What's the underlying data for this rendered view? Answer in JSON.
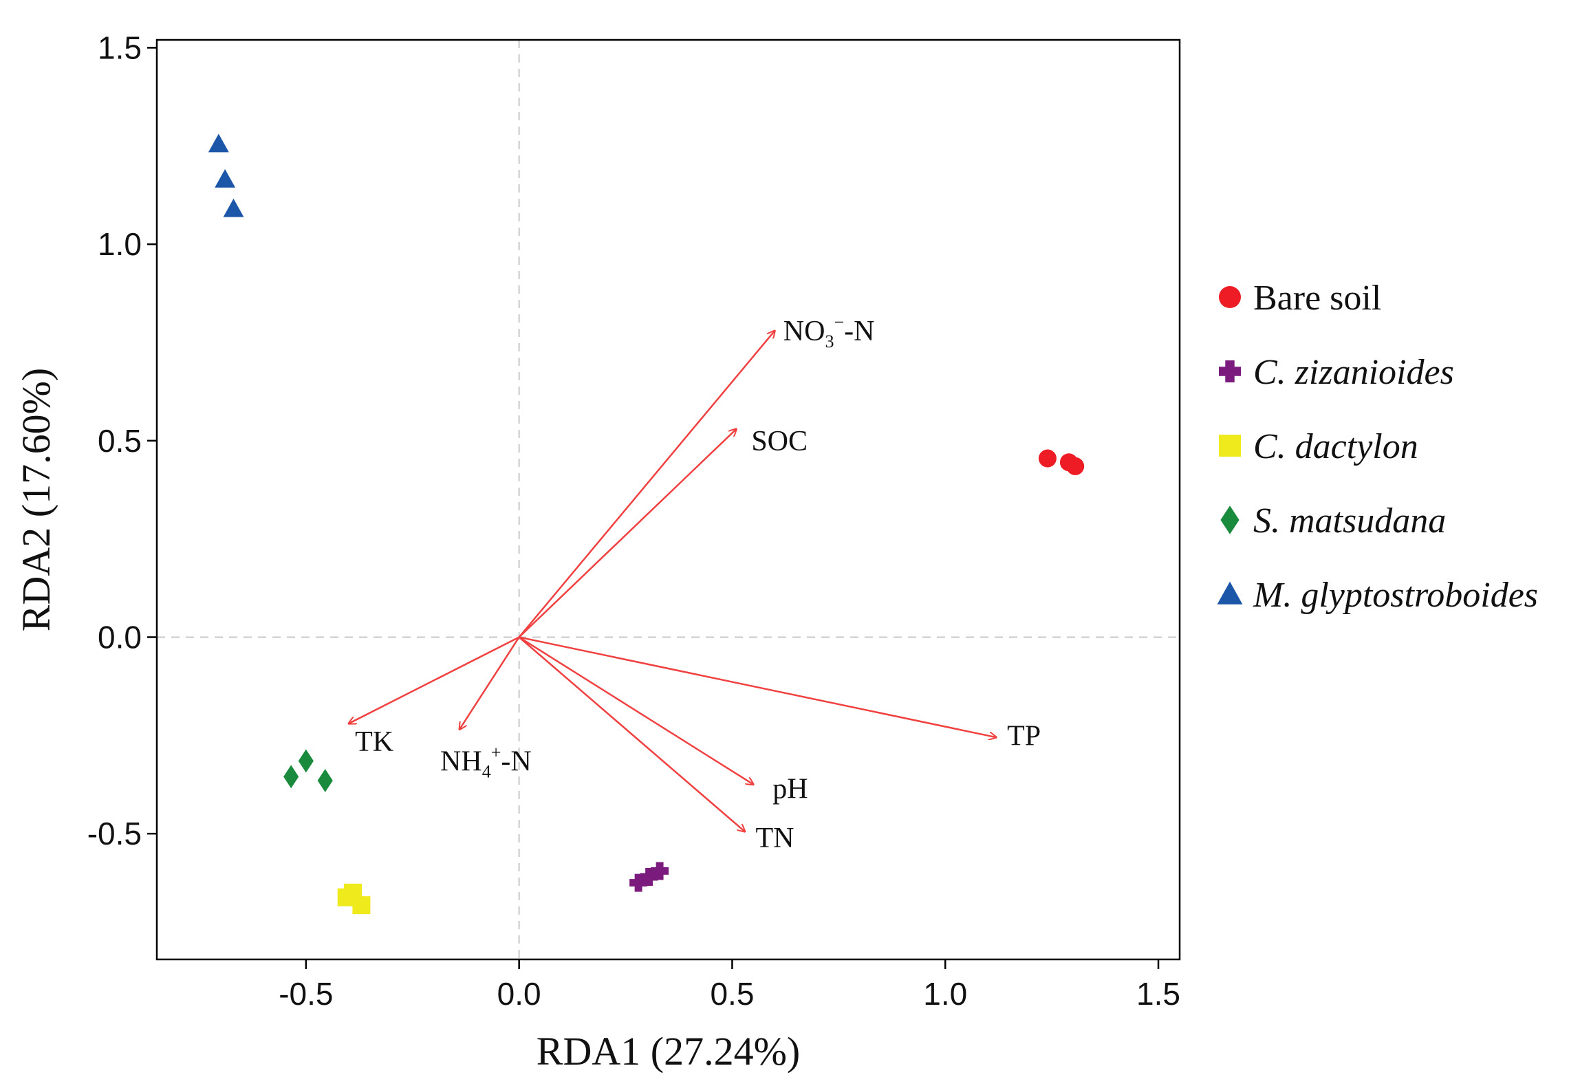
{
  "chart_data": {
    "type": "scatter",
    "subtype": "rda-biplot",
    "title": "",
    "xlabel": "RDA1 (27.24%)",
    "ylabel": "RDA2 (17.60%)",
    "xlim": [
      -0.85,
      1.55
    ],
    "ylim": [
      -0.82,
      1.52
    ],
    "xticks": [
      -0.5,
      0.0,
      0.5,
      1.0,
      1.5
    ],
    "yticks": [
      -0.5,
      0.0,
      0.5,
      1.0,
      1.5
    ],
    "xtick_labels": [
      "-0.5",
      "0.0",
      "0.5",
      "1.0",
      "1.5"
    ],
    "ytick_labels": [
      "-0.5",
      "0.0",
      "0.5",
      "1.0",
      "1.5"
    ],
    "reference_lines": {
      "x": 0.0,
      "y": 0.0,
      "style": "dashed"
    },
    "series": [
      {
        "name": "Bare soil",
        "italic": false,
        "marker": "circle",
        "color": "#ee1c24",
        "points": [
          [
            1.24,
            0.455
          ],
          [
            1.29,
            0.445
          ],
          [
            1.305,
            0.435
          ]
        ]
      },
      {
        "name": "C. zizanioides",
        "italic": true,
        "marker": "cross",
        "color": "#7b1b7e",
        "points": [
          [
            0.28,
            -0.625
          ],
          [
            0.305,
            -0.61
          ],
          [
            0.33,
            -0.595
          ]
        ]
      },
      {
        "name": "C. dactylon",
        "italic": true,
        "marker": "square",
        "color": "#eeea1c",
        "points": [
          [
            -0.405,
            -0.662
          ],
          [
            -0.39,
            -0.65
          ],
          [
            -0.37,
            -0.682
          ]
        ]
      },
      {
        "name": "S. matsudana",
        "italic": true,
        "marker": "diamond",
        "color": "#1a8a3c",
        "points": [
          [
            -0.535,
            -0.355
          ],
          [
            -0.5,
            -0.315
          ],
          [
            -0.455,
            -0.365
          ]
        ]
      },
      {
        "name": "M. glyptostroboides",
        "italic": true,
        "marker": "triangle",
        "color": "#1c56a8",
        "points": [
          [
            -0.705,
            1.255
          ],
          [
            -0.69,
            1.165
          ],
          [
            -0.67,
            1.09
          ]
        ]
      }
    ],
    "vectors": [
      {
        "name": "NO3⁻-N",
        "base": "NO",
        "sub": "3",
        "sup": "−",
        "tail": "-N",
        "x": 0.6,
        "y": 0.78,
        "label_x": 0.62,
        "label_y": 0.78
      },
      {
        "name": "SOC",
        "base": "SOC",
        "sub": "",
        "sup": "",
        "tail": "",
        "x": 0.51,
        "y": 0.53,
        "label_x": 0.545,
        "label_y": 0.5
      },
      {
        "name": "TP",
        "base": "TP",
        "sub": "",
        "sup": "",
        "tail": "",
        "x": 1.12,
        "y": -0.255,
        "label_x": 1.145,
        "label_y": -0.25
      },
      {
        "name": "pH",
        "base": "pH",
        "sub": "",
        "sup": "",
        "tail": "",
        "x": 0.55,
        "y": -0.375,
        "label_x": 0.595,
        "label_y": -0.385
      },
      {
        "name": "TN",
        "base": "TN",
        "sub": "",
        "sup": "",
        "tail": "",
        "x": 0.53,
        "y": -0.495,
        "label_x": 0.555,
        "label_y": -0.51
      },
      {
        "name": "TK",
        "base": "TK",
        "sub": "",
        "sup": "",
        "tail": "",
        "x": -0.4,
        "y": -0.22,
        "label_x": -0.385,
        "label_y": -0.265
      },
      {
        "name": "NH4⁺-N",
        "base": "NH",
        "sub": "4",
        "sup": "+",
        "tail": "-N",
        "x": -0.14,
        "y": -0.235,
        "label_x": -0.185,
        "label_y": -0.315
      }
    ],
    "legend": {
      "position": "right",
      "entries": [
        "Bare soil",
        "C. zizanioides",
        "C. dactylon",
        "S. matsudana",
        "M. glyptostroboides"
      ]
    },
    "colors": {
      "vector": "#f04040",
      "axis": "#000000",
      "refline": "#c8c8c8"
    }
  }
}
